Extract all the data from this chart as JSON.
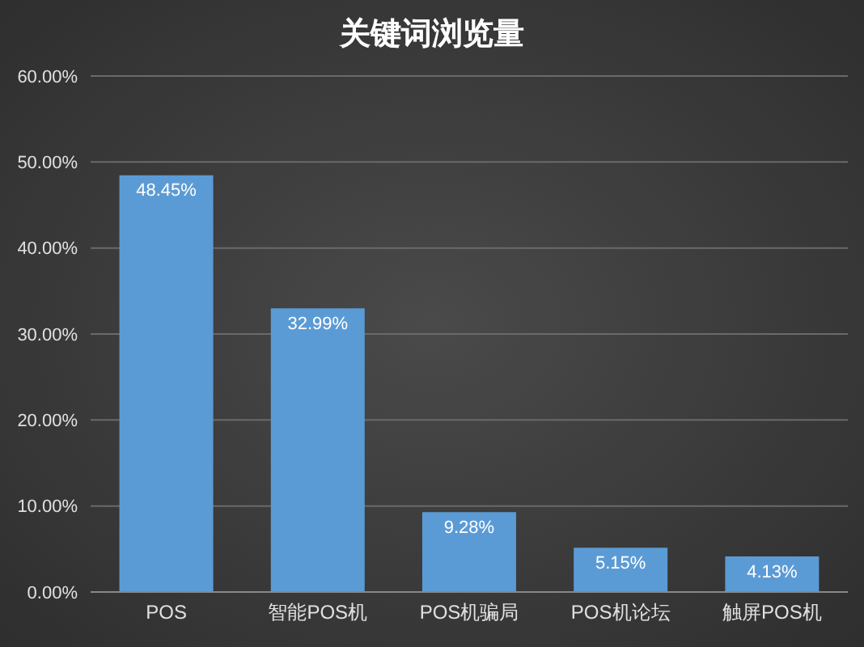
{
  "chart_data": {
    "type": "bar",
    "title": "关键词浏览量",
    "categories": [
      "POS",
      "智能POS机",
      "POS机骗局",
      "POS机论坛",
      "触屏POS机"
    ],
    "values": [
      48.45,
      32.99,
      9.28,
      5.15,
      4.13
    ],
    "value_labels": [
      "48.45%",
      "32.99%",
      "9.28%",
      "5.15%",
      "4.13%"
    ],
    "color": "#5b9bd5",
    "ylim": [
      0,
      60
    ],
    "yticks": [
      {
        "value": 0,
        "label": "0.00%"
      },
      {
        "value": 10,
        "label": "10.00%"
      },
      {
        "value": 20,
        "label": "20.00%"
      },
      {
        "value": 30,
        "label": "30.00%"
      },
      {
        "value": 40,
        "label": "40.00%"
      },
      {
        "value": 50,
        "label": "50.00%"
      },
      {
        "value": 60,
        "label": "60.00%"
      }
    ],
    "grid": "y",
    "legend": false
  }
}
